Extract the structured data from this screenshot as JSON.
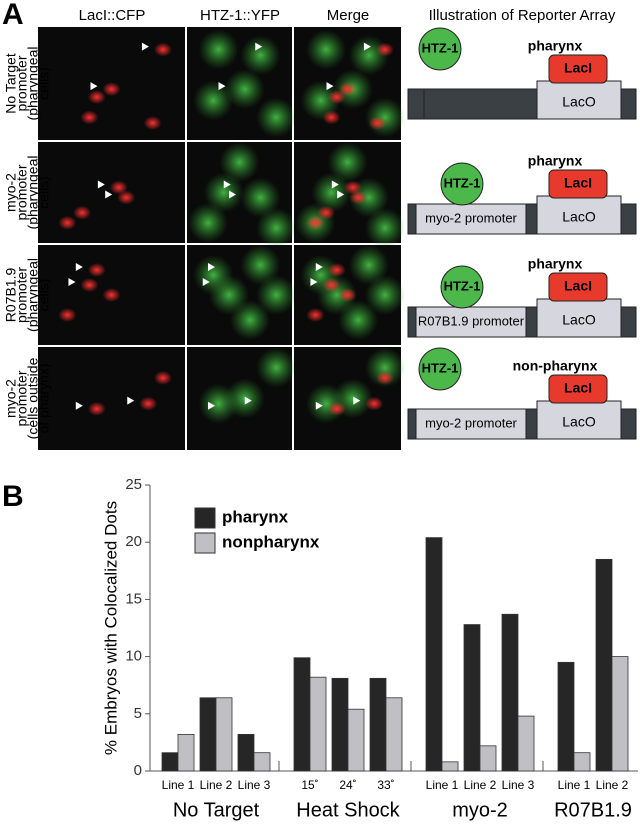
{
  "panel_a": {
    "label": "A",
    "columns": [
      "LacI::CFP",
      "HTZ-1::YFP",
      "Merge",
      "Illustration of Reporter Array"
    ],
    "rows": [
      {
        "label_lines": [
          "No Target",
          "promoter",
          "(pharyngeal",
          "cells)"
        ],
        "htz": "HTZ-1",
        "tissue": "pharynx",
        "laci": "LacI",
        "laco": "LacO"
      },
      {
        "label_lines": [
          "myo-2",
          "promoter",
          "(pharyngeal",
          "cells)"
        ],
        "htz": "HTZ-1",
        "tissue": "pharynx",
        "laci": "LacI",
        "laco": "LacO",
        "promoter": "myo-2 promoter"
      },
      {
        "label_lines": [
          "R07B1.9",
          "promoter",
          "(pharyngeal",
          "cells)"
        ],
        "htz": "HTZ-1",
        "tissue": "pharynx",
        "laci": "LacI",
        "laco": "LacO",
        "promoter": "R07B1.9 promoter"
      },
      {
        "label_lines": [
          "myo-2",
          "promoter",
          "(cells outside",
          "of pharynx)"
        ],
        "htz": "HTZ-1",
        "tissue": "non-pharynx",
        "laci": "LacI",
        "laco": "LacO",
        "promoter": "myo-2 promoter"
      }
    ]
  },
  "chart_data": {
    "type": "bar",
    "label": "B",
    "y_label": "% Embryos with Colocalized Dots",
    "categories": [
      "Line 1",
      "Line 2",
      "Line 3",
      "15˚",
      "24˚",
      "33˚",
      "Line 1",
      "Line 2",
      "Line 3",
      "Line 1",
      "Line 2"
    ],
    "groups": [
      {
        "name": "No Target",
        "categories": [
          "Line 1",
          "Line 2",
          "Line 3"
        ]
      },
      {
        "name": "Heat Shock",
        "categories": [
          "15˚",
          "24˚",
          "33˚"
        ]
      },
      {
        "name": "myo-2",
        "categories": [
          "Line 1",
          "Line 2",
          "Line 3"
        ]
      },
      {
        "name": "R07B1.9",
        "categories": [
          "Line 1",
          "Line 2"
        ]
      }
    ],
    "series": [
      {
        "name": "pharynx",
        "color": "#262626",
        "values": [
          1.6,
          6.4,
          3.2,
          9.9,
          8.1,
          8.1,
          20.4,
          12.8,
          13.7,
          9.5,
          18.5
        ]
      },
      {
        "name": "nonpharynx",
        "color": "#c0c0c4",
        "values": [
          3.2,
          6.4,
          1.6,
          8.2,
          5.4,
          6.4,
          0.8,
          2.2,
          4.8,
          1.6,
          10.0
        ]
      }
    ],
    "ylim": [
      0,
      25
    ],
    "yticks": [
      0,
      5,
      10,
      15,
      20,
      25
    ]
  }
}
